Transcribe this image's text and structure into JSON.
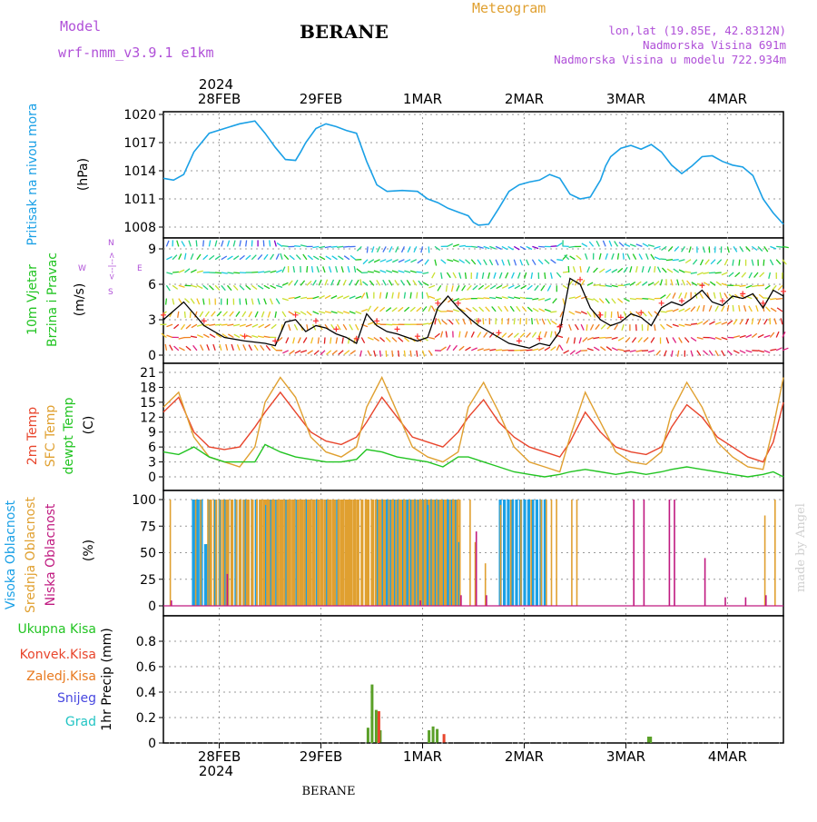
{
  "header": {
    "model_label": "Model",
    "model_name": "wrf-nmm_v3.9.1 e1km",
    "station": "BERANE",
    "product": "Meteogram",
    "lonlat": "lon,lat (19.85E, 42.8312N)",
    "elev": "Nadmorska Visina 691m",
    "elev_model": "Nadmorska Visina u modelu 722.934m",
    "footer_station": "BERANE",
    "credit": "made by Angel",
    "year_top": "2024",
    "year_bottom": "2024"
  },
  "colors": {
    "pressure": "#1aa0e6",
    "temp2m": "#e8452c",
    "sfc": "#e0a030",
    "dewpt": "#22c422",
    "high": "#1aa0e6",
    "mid": "#e0a030",
    "low": "#c01a80",
    "precip_total": "#5aa028",
    "precip_conv": "#e8452c",
    "precip_frz": "#e87a20",
    "snow": "#4848e0",
    "grad": "#22c4c4",
    "title_purple": "#b050d8",
    "meteogram_orange": "#e0a030"
  },
  "dates": [
    "28FEB",
    "29FEB",
    "1MAR",
    "2MAR",
    "3MAR",
    "4MAR"
  ],
  "panels": {
    "pressure": {
      "label": "Pritisak na nivou mora",
      "unit": "(hPa)",
      "ticks": [
        "1008",
        "1011",
        "1014",
        "1017",
        "1020"
      ]
    },
    "wind": {
      "label1": "10m Vjetar",
      "label2": "Brzina i Pravac",
      "unit": "(m/s)",
      "ticks": [
        "0",
        "3",
        "6",
        "9"
      ],
      "compass": [
        "W",
        "<--|-->",
        "E",
        "N",
        "S"
      ]
    },
    "temp": {
      "label1": "2m Temp",
      "label2": "SFC Temp",
      "label3": "dewpt Temp",
      "unit": "(C)",
      "ticks": [
        "0",
        "3",
        "6",
        "9",
        "12",
        "15",
        "18",
        "21"
      ]
    },
    "cloud": {
      "label1": "Visoka Oblacnost",
      "label2": "Srednja Oblacnost",
      "label3": "Niska Oblacnost",
      "unit": "(%)",
      "ticks": [
        "0",
        "25",
        "50",
        "75",
        "100"
      ]
    },
    "precip": {
      "legend": [
        "Ukupna Kisa",
        "Konvek.Kisa",
        "Zaledj.Kisa",
        "Snijeg",
        "Grad"
      ],
      "unit": "1hr Precip (mm)",
      "ticks": [
        "0",
        "0.2",
        "0.4",
        "0.6",
        "0.8"
      ]
    }
  },
  "chart_data": [
    {
      "type": "line",
      "name": "pressure",
      "ylabel": "Pritisak na nivou mora (hPa)",
      "ylim": [
        1008,
        1020
      ],
      "x_unit": "days from 27FEB 12UTC",
      "x": [
        0,
        0.1,
        0.2,
        0.3,
        0.45,
        0.6,
        0.75,
        0.9,
        1.0,
        1.1,
        1.2,
        1.3,
        1.35,
        1.4,
        1.5,
        1.6,
        1.7,
        1.8,
        1.9,
        2.0,
        2.1,
        2.2,
        2.35,
        2.5,
        2.6,
        2.7,
        2.8,
        2.9,
        3.0,
        3.05,
        3.1,
        3.2,
        3.3,
        3.4,
        3.5,
        3.6,
        3.7,
        3.8,
        3.9,
        4.0,
        4.1,
        4.2,
        4.3,
        4.35,
        4.4,
        4.5,
        4.6,
        4.7,
        4.8,
        4.9,
        5.0,
        5.1,
        5.2,
        5.3,
        5.4,
        5.5,
        5.6,
        5.7,
        5.8,
        5.9,
        6.0,
        6.1
      ],
      "values": [
        1013.2,
        1013.0,
        1013.6,
        1016.0,
        1018.0,
        1018.5,
        1019.0,
        1019.3,
        1018.0,
        1016.5,
        1015.2,
        1015.1,
        1016.0,
        1017.0,
        1018.5,
        1019.0,
        1018.7,
        1018.3,
        1018.0,
        1015.0,
        1012.5,
        1011.8,
        1011.9,
        1011.8,
        1011.0,
        1010.6,
        1010.0,
        1009.6,
        1009.2,
        1008.5,
        1008.2,
        1008.3,
        1010.0,
        1011.8,
        1012.5,
        1012.8,
        1013.0,
        1013.6,
        1013.2,
        1011.5,
        1011.0,
        1011.2,
        1013.0,
        1014.5,
        1015.5,
        1016.4,
        1016.7,
        1016.3,
        1016.8,
        1016.0,
        1014.6,
        1013.7,
        1014.5,
        1015.5,
        1015.6,
        1015.0,
        1014.6,
        1014.4,
        1013.5,
        1011.0,
        1009.5,
        1008.3
      ]
    },
    {
      "type": "line",
      "name": "wind_speed",
      "ylabel": "10m Vjetar Brzina i Pravac (m/s)",
      "ylim": [
        0,
        10
      ],
      "x": [
        0,
        0.2,
        0.4,
        0.6,
        0.8,
        1.0,
        1.1,
        1.2,
        1.3,
        1.4,
        1.5,
        1.6,
        1.7,
        1.8,
        1.9,
        2.0,
        2.1,
        2.2,
        2.3,
        2.4,
        2.5,
        2.6,
        2.7,
        2.8,
        2.9,
        3.0,
        3.1,
        3.2,
        3.3,
        3.4,
        3.5,
        3.6,
        3.7,
        3.8,
        3.9,
        4.0,
        4.1,
        4.2,
        4.3,
        4.4,
        4.5,
        4.6,
        4.7,
        4.8,
        4.9,
        5.0,
        5.1,
        5.2,
        5.3,
        5.4,
        5.5,
        5.6,
        5.7,
        5.8,
        5.9,
        6.0,
        6.1
      ],
      "values": [
        3.0,
        4.5,
        2.5,
        1.5,
        1.2,
        1.0,
        0.8,
        2.8,
        3.0,
        2.0,
        2.5,
        2.3,
        1.8,
        1.5,
        1.0,
        3.5,
        2.5,
        2.0,
        1.8,
        1.5,
        1.2,
        1.5,
        4.0,
        5.0,
        4.0,
        3.2,
        2.5,
        2.0,
        1.5,
        1.0,
        0.8,
        0.6,
        1.0,
        0.8,
        2.0,
        6.5,
        6.0,
        4.0,
        3.0,
        2.5,
        2.8,
        3.5,
        3.2,
        2.5,
        4.0,
        4.5,
        4.2,
        4.8,
        5.5,
        4.5,
        4.2,
        5.0,
        4.8,
        5.2,
        4.0,
        5.5,
        5.0
      ]
    },
    {
      "type": "line",
      "name": "temperature",
      "ylabel": "Temp (C)",
      "ylim": [
        0,
        21
      ],
      "x": [
        0,
        0.15,
        0.3,
        0.45,
        0.6,
        0.75,
        0.9,
        1.0,
        1.15,
        1.3,
        1.45,
        1.6,
        1.75,
        1.9,
        2.0,
        2.15,
        2.3,
        2.45,
        2.6,
        2.75,
        2.9,
        3.0,
        3.15,
        3.3,
        3.45,
        3.6,
        3.75,
        3.9,
        4.0,
        4.15,
        4.3,
        4.45,
        4.6,
        4.75,
        4.9,
        5.0,
        5.15,
        5.3,
        5.45,
        5.6,
        5.75,
        5.9,
        6.0,
        6.1
      ],
      "series": [
        {
          "name": "2m Temp",
          "values": [
            13,
            16,
            9,
            6,
            5.5,
            6,
            10,
            13,
            17,
            13,
            9,
            7.2,
            6.5,
            8,
            11,
            16,
            12,
            8,
            7,
            6,
            9,
            12,
            15.5,
            11,
            8,
            6,
            5,
            4,
            7,
            13,
            9,
            6,
            5,
            4.5,
            6,
            10,
            14.5,
            12,
            8,
            6,
            4,
            3,
            7,
            15
          ]
        },
        {
          "name": "SFC Temp",
          "values": [
            14,
            17,
            8,
            4,
            3,
            2,
            6,
            15,
            20,
            16,
            8,
            5,
            4,
            6,
            14,
            20,
            13,
            6,
            4,
            3,
            5,
            14,
            19,
            13,
            6,
            3,
            2,
            1,
            8,
            17,
            11,
            5,
            3,
            2.5,
            5,
            13,
            19,
            14,
            7,
            4,
            2,
            1.5,
            10,
            20
          ]
        },
        {
          "name": "dewpt Temp",
          "values": [
            5,
            4.5,
            6,
            4,
            3,
            3,
            3,
            6.5,
            5,
            4,
            3.5,
            3,
            3,
            3.5,
            5.5,
            5,
            4,
            3.5,
            3,
            2,
            4,
            4,
            3,
            2,
            1,
            0.5,
            0,
            0.5,
            1,
            1.5,
            1,
            0.5,
            1,
            0.5,
            1,
            1.5,
            2,
            1.5,
            1,
            0.5,
            0,
            0.5,
            1,
            0
          ]
        }
      ]
    },
    {
      "type": "bar",
      "name": "cloud_cover",
      "ylabel": "Oblacnost (%)",
      "ylim": [
        0,
        100
      ],
      "note": "high cloud 100% blocks with gaps; mid and low cloud intermittent",
      "x": [
        0.05,
        0.3,
        0.35,
        0.42,
        0.5,
        0.55,
        0.6,
        0.7,
        0.8,
        0.9,
        1.0,
        1.05,
        1.1,
        1.2,
        1.3,
        1.4,
        1.5,
        1.6,
        1.7,
        1.8,
        1.9,
        2.0,
        2.05,
        2.1,
        2.15,
        2.2,
        2.3,
        2.4,
        2.5,
        2.6,
        2.7,
        2.8,
        2.9,
        3.0,
        3.05,
        3.15,
        3.3,
        3.4,
        3.5,
        3.6,
        3.7,
        3.75,
        3.8,
        3.85,
        4.0,
        4.05,
        4.6,
        4.7,
        4.8,
        4.95,
        5.0,
        5.3,
        5.5,
        5.7,
        5.9,
        6.0
      ],
      "series": [
        {
          "name": "Visoka Oblacnost",
          "values": [
            0,
            100,
            100,
            58,
            100,
            100,
            100,
            100,
            100,
            100,
            95,
            100,
            100,
            100,
            100,
            100,
            100,
            100,
            100,
            0,
            0,
            0,
            0,
            100,
            100,
            100,
            100,
            100,
            100,
            95,
            100,
            100,
            60,
            0,
            0,
            0,
            0,
            0,
            50,
            0,
            0,
            0,
            0,
            0,
            0,
            0,
            0,
            0,
            0,
            0,
            0,
            0,
            0,
            0,
            0,
            0
          ]
        },
        {
          "name": "Srednja Oblacnost",
          "values": [
            100,
            100,
            100,
            100,
            100,
            100,
            100,
            100,
            100,
            100,
            100,
            100,
            100,
            100,
            100,
            100,
            100,
            100,
            100,
            100,
            95,
            100,
            100,
            100,
            100,
            100,
            100,
            100,
            100,
            100,
            100,
            100,
            100,
            100,
            60,
            40,
            95,
            100,
            100,
            100,
            100,
            100,
            100,
            100,
            100,
            100,
            0,
            0,
            0,
            0,
            0,
            0,
            0,
            0,
            85,
            100
          ]
        },
        {
          "name": "Niska Oblacnost",
          "values": [
            5,
            0,
            0,
            0,
            0,
            0,
            30,
            0,
            0,
            0,
            0,
            0,
            0,
            0,
            0,
            0,
            0,
            0,
            0,
            0,
            0,
            0,
            0,
            0,
            0,
            0,
            0,
            0,
            5,
            0,
            0,
            0,
            10,
            0,
            70,
            10,
            0,
            0,
            0,
            0,
            0,
            0,
            0,
            0,
            0,
            0,
            100,
            100,
            0,
            100,
            100,
            45,
            8,
            8,
            10,
            0
          ]
        }
      ]
    },
    {
      "type": "bar",
      "name": "precipitation",
      "ylabel": "1hr Precip (mm)",
      "ylim": [
        0,
        0.9
      ],
      "x": [
        2.0,
        2.04,
        2.08,
        2.12,
        2.6,
        2.64,
        2.68,
        2.72,
        4.76,
        4.78
      ],
      "series": [
        {
          "name": "Ukupna Kisa",
          "values": [
            0.12,
            0.46,
            0.26,
            0.1,
            0.1,
            0.13,
            0.11,
            0,
            0.05,
            0.05
          ]
        },
        {
          "name": "Konvek.Kisa",
          "values": [
            0,
            0,
            0,
            0,
            0,
            0,
            0,
            0.07,
            0,
            0
          ]
        }
      ]
    }
  ]
}
